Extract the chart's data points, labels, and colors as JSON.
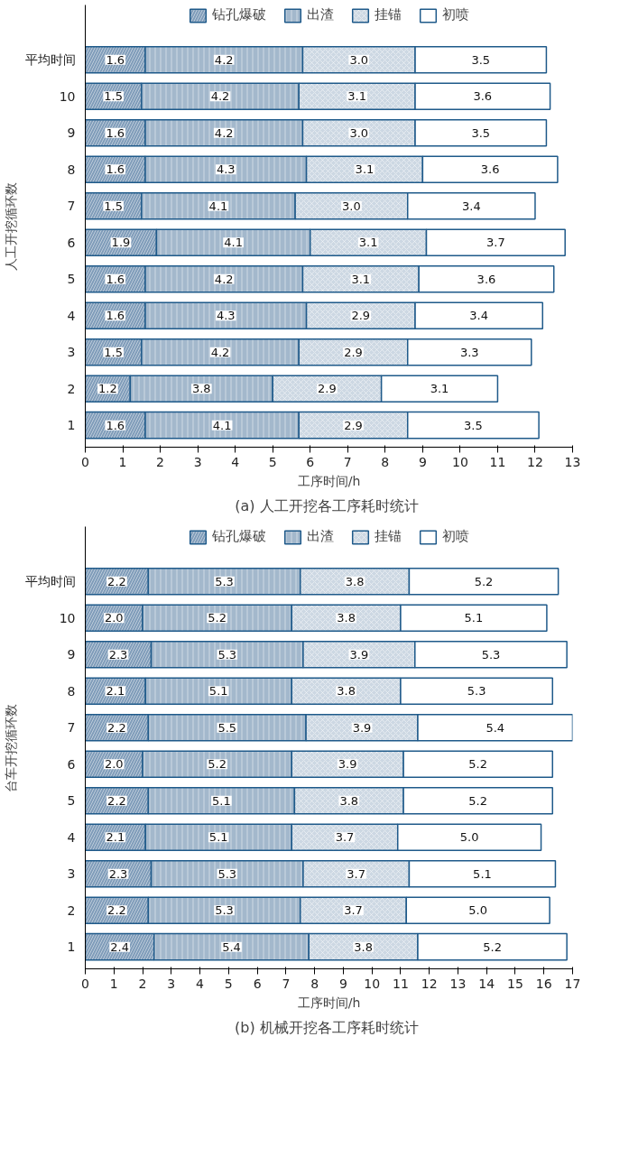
{
  "chart_data": [
    {
      "type": "bar",
      "orientation": "horizontal",
      "stacked": true,
      "legend": "top",
      "grid": false,
      "ylabel": "人工开挖循环数",
      "xlabel": "工序时间/h",
      "annotations": [
        "(a)  人工开挖各工序耗时统计"
      ],
      "categories": [
        "平均时间",
        "10",
        "9",
        "8",
        "7",
        "6",
        "5",
        "4",
        "3",
        "2",
        "1"
      ],
      "xlim": [
        0,
        13
      ],
      "xticks": [
        0,
        1,
        2,
        3,
        4,
        5,
        6,
        7,
        8,
        9,
        10,
        11,
        12,
        13
      ],
      "series": [
        {
          "name": "钻孔爆破",
          "color": "#7f9cb9",
          "values": [
            1.6,
            1.5,
            1.6,
            1.6,
            1.5,
            1.9,
            1.6,
            1.6,
            1.5,
            1.2,
            1.6
          ],
          "value_labels": [
            "1.6",
            "1.5",
            "1.6",
            "1.6",
            "1.5",
            "1.9",
            "1.6",
            "1.6",
            "1.5",
            "1.2",
            "1.6"
          ]
        },
        {
          "name": "出渣",
          "color": "#a3b8cc",
          "values": [
            4.2,
            4.2,
            4.2,
            4.3,
            4.1,
            4.1,
            4.2,
            4.3,
            4.2,
            3.8,
            4.1
          ],
          "value_labels": [
            "4.2",
            "4.2",
            "4.2",
            "4.3",
            "4.1",
            "4.1",
            "4.2",
            "4.3",
            "4.2",
            "3.8",
            "4.1"
          ]
        },
        {
          "name": "挂锚",
          "color": "#cdd8e3",
          "values": [
            3.0,
            3.1,
            3.0,
            3.1,
            3.0,
            3.1,
            3.1,
            2.9,
            2.9,
            2.9,
            2.9
          ],
          "value_labels": [
            "3.0",
            "3.1",
            "3.0",
            "3.1",
            "3.0",
            "3.1",
            "3.1",
            "2.9",
            "2.9",
            "2.9",
            "2.9"
          ]
        },
        {
          "name": "初喷",
          "color": "#ffffff",
          "values": [
            3.5,
            3.6,
            3.5,
            3.6,
            3.4,
            3.7,
            3.6,
            3.4,
            3.3,
            3.1,
            3.5
          ],
          "value_labels": [
            "3.5",
            "3.6",
            "3.5",
            "3.6",
            "3.4",
            "3.7",
            "3.6",
            "3.4",
            "3.3",
            "3.1",
            "3.5"
          ]
        }
      ]
    },
    {
      "type": "bar",
      "orientation": "horizontal",
      "stacked": true,
      "legend": "top",
      "grid": false,
      "ylabel": "台车开挖循环数",
      "xlabel": "工序时间/h",
      "annotations": [
        "(b)  机械开挖各工序耗时统计"
      ],
      "categories": [
        "平均时间",
        "10",
        "9",
        "8",
        "7",
        "6",
        "5",
        "4",
        "3",
        "2",
        "1"
      ],
      "xlim": [
        0,
        17
      ],
      "xticks": [
        0,
        1,
        2,
        3,
        4,
        5,
        6,
        7,
        8,
        9,
        10,
        11,
        12,
        13,
        14,
        15,
        16,
        17
      ],
      "series": [
        {
          "name": "钻孔爆破",
          "color": "#7f9cb9",
          "values": [
            2.2,
            2.0,
            2.3,
            2.1,
            2.2,
            2.0,
            2.2,
            2.1,
            2.3,
            2.2,
            2.4
          ],
          "value_labels": [
            "2.2",
            "2.0",
            "2.3",
            "2.1",
            "2.2",
            "2.0",
            "2.2",
            "2.1",
            "2.3",
            "2.2",
            "2.4"
          ]
        },
        {
          "name": "出渣",
          "color": "#a3b8cc",
          "values": [
            5.3,
            5.2,
            5.3,
            5.1,
            5.5,
            5.2,
            5.1,
            5.1,
            5.3,
            5.3,
            5.4
          ],
          "value_labels": [
            "5.3",
            "5.2",
            "5.3",
            "5.1",
            "5.5",
            "5.2",
            "5.1",
            "5.1",
            "5.3",
            "5.3",
            "5.4"
          ]
        },
        {
          "name": "挂锚",
          "color": "#cdd8e3",
          "values": [
            3.8,
            3.8,
            3.9,
            3.8,
            3.9,
            3.9,
            3.8,
            3.7,
            3.7,
            3.7,
            3.8
          ],
          "value_labels": [
            "3.8",
            "3.8",
            "3.9",
            "3.8",
            "3.9",
            "3.9",
            "3.8",
            "3.7",
            "3.7",
            "3.7",
            "3.8"
          ]
        },
        {
          "name": "初喷",
          "color": "#ffffff",
          "values": [
            5.2,
            5.1,
            5.3,
            5.3,
            5.4,
            5.2,
            5.2,
            5.0,
            5.1,
            5.0,
            5.2
          ],
          "value_labels": [
            "5.2",
            "5.1",
            "5.3",
            "5.3",
            "5.4",
            "5.2",
            "5.2",
            "5.0",
            "5.1",
            "5.0",
            "5.2"
          ]
        }
      ]
    }
  ]
}
